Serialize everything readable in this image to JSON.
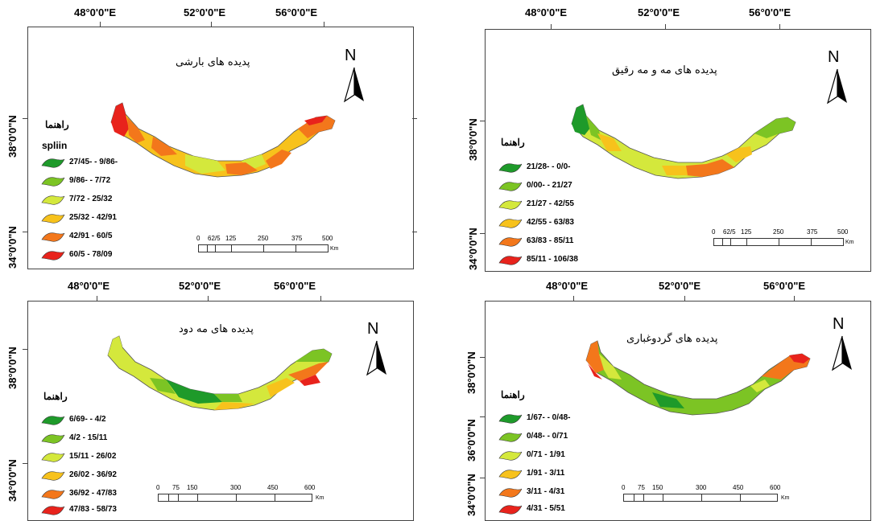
{
  "panels": [
    {
      "title": "پدیده های بارشی",
      "lon_labels": [
        "48°0'0\"E",
        "52°0'0\"E",
        "56°0'0\"E"
      ],
      "lat_labels": [
        "38°0'0\"N",
        "34°0'0\"N"
      ],
      "legend_title": "راهنما",
      "legend_subtitle": "spliin",
      "legend": [
        "27/45- - 9/86-",
        "9/86- - 7/72",
        "7/72 - 25/32",
        "25/32 - 42/91",
        "42/91 - 60/5",
        "60/5 - 78/09"
      ],
      "scale_labels": [
        "0",
        "62/5",
        "125",
        "250",
        "375",
        "500"
      ],
      "scale_unit": "Km",
      "north": "N"
    },
    {
      "title": "پدیده های مه و مه رقیق",
      "lon_labels": [
        "48°0'0\"E",
        "52°0'0\"E",
        "56°0'0\"E"
      ],
      "lat_labels": [
        "38°0'0\"N",
        "34°0'0\"N"
      ],
      "legend_title": "راهنما",
      "legend": [
        "21/28- - 0/0-",
        "0/00- - 21/27",
        "21/27 - 42/55",
        "42/55 - 63/83",
        "63/83 - 85/11",
        "85/11 - 106/38"
      ],
      "scale_labels": [
        "0",
        "62/5",
        "125",
        "250",
        "375",
        "500"
      ],
      "scale_unit": "Km",
      "north": "N"
    },
    {
      "title": "پدیده های مه دود",
      "lon_labels": [
        "48°0'0\"E",
        "52°0'0\"E",
        "56°0'0\"E"
      ],
      "lat_labels": [
        "38°0'0\"N",
        "34°0'0\"N"
      ],
      "legend_title": "راهنما",
      "legend": [
        "6/69- - 4/2",
        "4/2 - 15/11",
        "15/11 - 26/02",
        "26/02 - 36/92",
        "36/92 - 47/83",
        "47/83 - 58/73"
      ],
      "scale_labels": [
        "0",
        "75",
        "150",
        "300",
        "450",
        "600"
      ],
      "scale_unit": "Km",
      "north": "N"
    },
    {
      "title": "پدیده های گردوغباری",
      "lon_labels": [
        "48°0'0\"E",
        "52°0'0\"E",
        "56°0'0\"E"
      ],
      "lat_labels": [
        "38°0'0\"N",
        "36°0'0\"N",
        "34°0'0\"N"
      ],
      "legend_title": "راهنما",
      "legend": [
        "1/67- - 0/48-",
        "0/48- - 0/71",
        "0/71 - 1/91",
        "1/91 - 3/11",
        "3/11 - 4/31",
        "4/31 - 5/51"
      ],
      "scale_labels": [
        "0",
        "75",
        "150",
        "300",
        "450",
        "600"
      ],
      "scale_unit": "Km",
      "north": "N"
    }
  ],
  "legend_colors": [
    "#1e9a2a",
    "#7cc424",
    "#d4e83c",
    "#f7c21c",
    "#f3771b",
    "#e8231c"
  ]
}
